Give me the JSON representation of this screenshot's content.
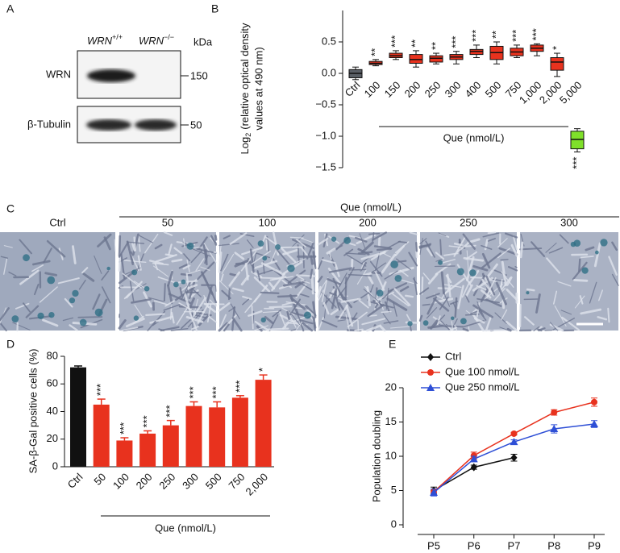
{
  "blot": {
    "panel": "A",
    "lanes": [
      {
        "gene": "WRN",
        "genotype": "+/+"
      },
      {
        "gene": "WRN",
        "genotype": "−/−"
      }
    ],
    "unit": "kDa",
    "rows": [
      {
        "label": "WRN",
        "marker": "150"
      },
      {
        "label": "β-Tubulin",
        "marker": "50"
      }
    ]
  },
  "micrographs": {
    "panel": "C",
    "group_label": "Que (nmol/L)",
    "labels": [
      "Ctrl",
      "50",
      "100",
      "200",
      "250",
      "300"
    ]
  },
  "chart_data": [
    {
      "panel": "B",
      "type": "box",
      "ylabel": {
        "text": "Log",
        "subscript": "2",
        "rest": "(relative optical density",
        "line2": "values at 490 nm)"
      },
      "xlabel": "Que (nmol/L)",
      "categories": [
        "Ctrl",
        "100",
        "150",
        "200",
        "250",
        "300",
        "400",
        "500",
        "750",
        "1,000",
        "2,000",
        "5,000"
      ],
      "colors": [
        "#5a5f66",
        "#e8321e",
        "#e8321e",
        "#e8321e",
        "#e8321e",
        "#e8321e",
        "#e8321e",
        "#e8321e",
        "#e8321e",
        "#e8321e",
        "#e8321e",
        "#7fe02a"
      ],
      "min": [
        -0.1,
        0.12,
        0.22,
        0.1,
        0.15,
        0.15,
        0.25,
        0.15,
        0.25,
        0.28,
        -0.05,
        -1.25
      ],
      "q1": [
        -0.07,
        0.14,
        0.25,
        0.16,
        0.18,
        0.22,
        0.3,
        0.22,
        0.28,
        0.35,
        0.05,
        -1.2
      ],
      "median": [
        0.0,
        0.16,
        0.28,
        0.22,
        0.24,
        0.26,
        0.35,
        0.33,
        0.34,
        0.4,
        0.18,
        -1.05
      ],
      "q3": [
        0.06,
        0.19,
        0.32,
        0.3,
        0.28,
        0.3,
        0.38,
        0.43,
        0.4,
        0.45,
        0.25,
        -0.92
      ],
      "max": [
        0.1,
        0.22,
        0.36,
        0.36,
        0.32,
        0.35,
        0.45,
        0.5,
        0.45,
        0.47,
        0.32,
        -0.88
      ],
      "annotations": [
        null,
        "**",
        "***",
        "**",
        "**",
        "***",
        "***",
        "**",
        "***",
        "***",
        "*",
        "***"
      ],
      "ylim": [
        -1.5,
        1.0
      ],
      "yticks": [
        0.5,
        {
          "value": 0,
          "label": "0.0"
        },
        {
          "value": -0.5,
          "label": "−0.5"
        },
        {
          "value": -1,
          "label": "−1.0"
        },
        {
          "value": -1.5,
          "label": "−1.5"
        }
      ]
    },
    {
      "panel": "D",
      "type": "bar",
      "ylabel": "SA-β-Gal positive cells (%)",
      "xlabel": "Que (nmol/L)",
      "categories": [
        "Ctrl",
        "50",
        "100",
        "200",
        "250",
        "300",
        "500",
        "750",
        "2,000"
      ],
      "colors": [
        "#111111",
        "#e8321e",
        "#e8321e",
        "#e8321e",
        "#e8321e",
        "#e8321e",
        "#e8321e",
        "#e8321e",
        "#e8321e"
      ],
      "values": [
        72,
        45,
        19,
        24,
        30,
        44,
        43,
        50,
        63
      ],
      "errors": [
        1,
        4,
        2,
        2,
        3.5,
        3,
        4,
        1.5,
        3.5
      ],
      "annotations": [
        null,
        "***",
        "***",
        "***",
        "***",
        "***",
        "***",
        "***",
        "*"
      ],
      "ylim": [
        0,
        80
      ],
      "yticks": [
        0,
        20,
        40,
        60,
        80
      ]
    },
    {
      "panel": "E",
      "type": "line",
      "ylabel": "Population doubling",
      "categories": [
        "P5",
        "P6",
        "P7",
        "P8",
        "P9"
      ],
      "series": [
        {
          "name": "Ctrl",
          "color": "#111111",
          "marker": "diamond",
          "values": [
            5.0,
            8.4,
            9.8,
            null,
            null
          ],
          "errors": [
            0.5,
            0.3,
            0.5,
            null,
            null
          ]
        },
        {
          "name": "Que 100 nmol/L",
          "color": "#e8321e",
          "marker": "circle",
          "values": [
            4.8,
            10.1,
            13.3,
            16.4,
            17.9
          ],
          "errors": [
            0.4,
            0.5,
            0.2,
            0.4,
            0.6
          ]
        },
        {
          "name": "Que 250 nmol/L",
          "color": "#2e4fd6",
          "marker": "triangle",
          "values": [
            4.7,
            9.6,
            12.1,
            14.0,
            14.7
          ],
          "errors": [
            0.5,
            0.4,
            0.3,
            0.6,
            0.5
          ]
        }
      ],
      "ylim": [
        0,
        20
      ],
      "yticks": [
        0,
        5,
        10,
        15,
        20
      ]
    }
  ]
}
